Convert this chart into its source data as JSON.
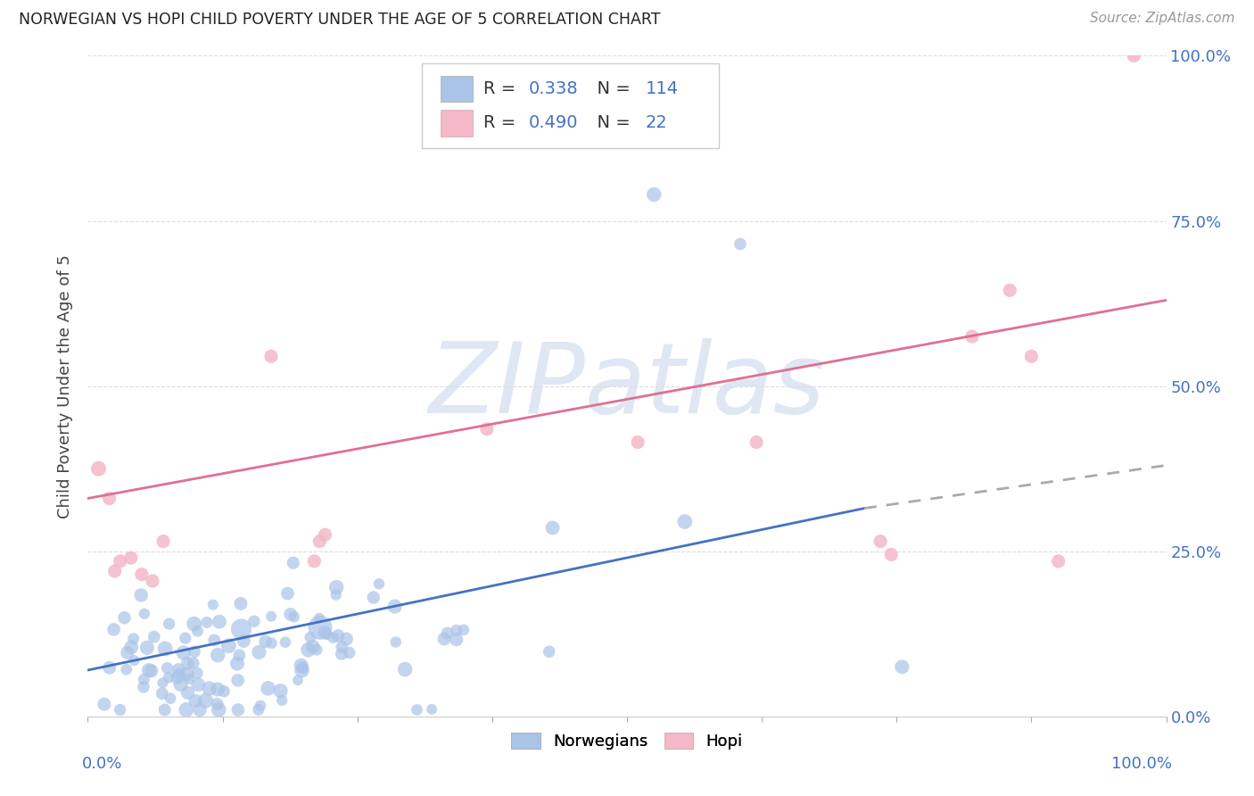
{
  "title": "NORWEGIAN VS HOPI CHILD POVERTY UNDER THE AGE OF 5 CORRELATION CHART",
  "source": "Source: ZipAtlas.com",
  "ylabel": "Child Poverty Under the Age of 5",
  "xlim": [
    0.0,
    1.0
  ],
  "ylim": [
    0.0,
    1.0
  ],
  "xticks": [
    0.0,
    0.125,
    0.25,
    0.375,
    0.5,
    0.625,
    0.75,
    0.875,
    1.0
  ],
  "yticks": [
    0.0,
    0.25,
    0.5,
    0.75,
    1.0
  ],
  "background_color": "#ffffff",
  "grid_color": "#dddddd",
  "norwegian_color": "#aac4e8",
  "hopi_color": "#f4b8c8",
  "norwegian_line_color": "#4472c4",
  "hopi_line_color": "#e07090",
  "label_color": "#4472c4",
  "R_norwegian": 0.338,
  "N_norwegian": 114,
  "R_hopi": 0.49,
  "N_hopi": 22,
  "watermark_zip": "ZIP",
  "watermark_atlas": "atlas",
  "watermark_color_zip": "#c5d5e8",
  "watermark_color_atlas": "#c5d5e8",
  "norwegian_trend_x0": 0.0,
  "norwegian_trend_x1": 0.72,
  "norwegian_trend_x2": 1.0,
  "norwegian_trend_y0": 0.07,
  "norwegian_trend_y1": 0.315,
  "norwegian_trend_y2": 0.38,
  "hopi_trend_x0": 0.0,
  "hopi_trend_x1": 1.0,
  "hopi_trend_y0": 0.33,
  "hopi_trend_y1": 0.63,
  "hopi_scatter_x": [
    0.01,
    0.02,
    0.025,
    0.03,
    0.04,
    0.05,
    0.06,
    0.07,
    0.17,
    0.21,
    0.215,
    0.22,
    0.37,
    0.51,
    0.62,
    0.735,
    0.745,
    0.82,
    0.855,
    0.875,
    0.9,
    0.97
  ],
  "hopi_scatter_y": [
    0.375,
    0.33,
    0.22,
    0.235,
    0.24,
    0.215,
    0.205,
    0.265,
    0.545,
    0.235,
    0.265,
    0.275,
    0.435,
    0.415,
    0.415,
    0.265,
    0.245,
    0.575,
    0.645,
    0.545,
    0.235,
    1.0
  ],
  "hopi_scatter_sizes": [
    150,
    120,
    120,
    120,
    120,
    120,
    120,
    120,
    120,
    120,
    120,
    120,
    120,
    120,
    120,
    120,
    120,
    120,
    120,
    120,
    120,
    120
  ]
}
